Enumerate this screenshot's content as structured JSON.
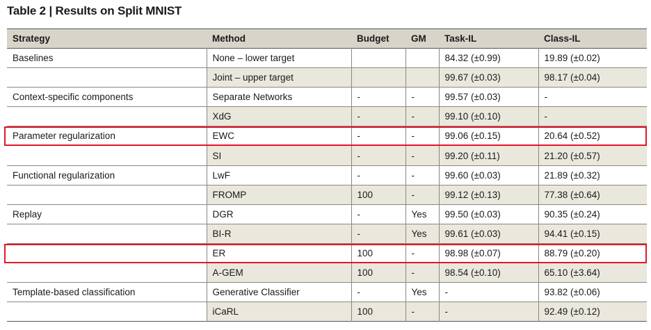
{
  "caption": "Table 2 | Results on Split MNIST",
  "headers": [
    "Strategy",
    "Method",
    "Budget",
    "GM",
    "Task-IL",
    "Class-IL"
  ],
  "rows": [
    [
      "Baselines",
      "None – lower target",
      "",
      "",
      "84.32 (±0.99)",
      "19.89 (±0.02)"
    ],
    [
      "",
      "Joint – upper target",
      "",
      "",
      "99.67 (±0.03)",
      "98.17 (±0.04)"
    ],
    [
      "Context-specific components",
      "Separate Networks",
      "-",
      "-",
      "99.57 (±0.03)",
      "-"
    ],
    [
      "",
      "XdG",
      "-",
      "-",
      "99.10 (±0.10)",
      "-"
    ],
    [
      "Parameter regularization",
      "EWC",
      "-",
      "-",
      "99.06 (±0.15)",
      "20.64 (±0.52)"
    ],
    [
      "",
      "SI",
      "-",
      "-",
      "99.20 (±0.11)",
      "21.20 (±0.57)"
    ],
    [
      "Functional regularization",
      "LwF",
      "-",
      "-",
      "99.60 (±0.03)",
      "21.89 (±0.32)"
    ],
    [
      "",
      "FROMP",
      "100",
      "-",
      "99.12 (±0.13)",
      "77.38 (±0.64)"
    ],
    [
      "Replay",
      "DGR",
      "-",
      "Yes",
      "99.50 (±0.03)",
      "90.35 (±0.24)"
    ],
    [
      "",
      "BI-R",
      "-",
      "Yes",
      "99.61 (±0.03)",
      "94.41 (±0.15)"
    ],
    [
      "",
      "ER",
      "100",
      "-",
      "98.98 (±0.07)",
      "88.79 (±0.20)"
    ],
    [
      "",
      "A-GEM",
      "100",
      "-",
      "98.54 (±0.10)",
      "65.10 (±3.64)"
    ],
    [
      "Template-based classification",
      "Generative Classifier",
      "-",
      "Yes",
      "-",
      "93.82 (±0.06)"
    ],
    [
      "",
      "iCaRL",
      "100",
      "-",
      "-",
      "92.49 (±0.12)"
    ]
  ],
  "highlighted_rows": [
    4,
    10
  ],
  "colors": {
    "header_bg": "#d8d4c9",
    "shade_bg": "#eae7dc",
    "highlight": "#e0162b"
  }
}
